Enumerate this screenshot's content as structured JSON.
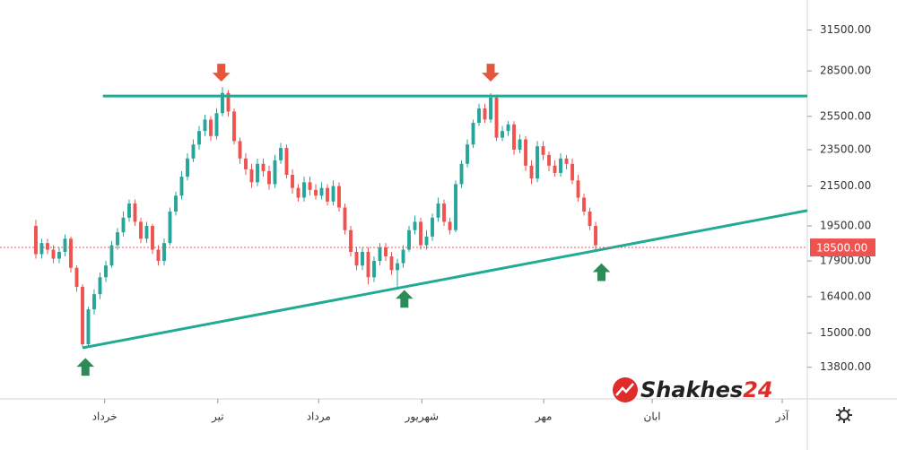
{
  "chart_data": {
    "type": "candlestick",
    "log_scale": true,
    "xlim": [
      -6.15,
      132.3
    ],
    "ylim": [
      12770,
      33900
    ],
    "xticks": [
      {
        "value": 11.8,
        "label": "خرداد"
      },
      {
        "value": 31.2,
        "label": "تیر"
      },
      {
        "value": 48.5,
        "label": "مرداد"
      },
      {
        "value": 66.2,
        "label": "شهریور"
      },
      {
        "value": 87.1,
        "label": "مهر"
      },
      {
        "value": 105.7,
        "label": "ابان"
      },
      {
        "value": 128,
        "label": "آذر"
      }
    ],
    "yticks": [
      {
        "value": 31500,
        "label": "31500.00"
      },
      {
        "value": 28500,
        "label": "28500.00"
      },
      {
        "value": 25500,
        "label": "25500.00"
      },
      {
        "value": 23500,
        "label": "23500.00"
      },
      {
        "value": 21500,
        "label": "21500.00"
      },
      {
        "value": 19500,
        "label": "19500.00"
      },
      {
        "value": 17900,
        "label": "17900.00"
      },
      {
        "value": 16400,
        "label": "16400.00"
      },
      {
        "value": 15000,
        "label": "15000.00"
      },
      {
        "value": 13800,
        "label": "13800.00"
      }
    ],
    "up_color": "#26a69a",
    "down_color": "#ef5350",
    "x": [
      0,
      1,
      2,
      3,
      4,
      5,
      6,
      7,
      8,
      9,
      10,
      11,
      12,
      13,
      14,
      15,
      16,
      17,
      18,
      19,
      20,
      21,
      22,
      23,
      24,
      25,
      26,
      27,
      28,
      29,
      30,
      31,
      32,
      33,
      34,
      35,
      36,
      37,
      38,
      39,
      40,
      41,
      42,
      43,
      44,
      45,
      46,
      47,
      48,
      49,
      50,
      51,
      52,
      53,
      54,
      55,
      56,
      57,
      58,
      59,
      60,
      61,
      62,
      63,
      64,
      65,
      66,
      67,
      68,
      69,
      70,
      71,
      72,
      73,
      74,
      75,
      76,
      77,
      78,
      79,
      80,
      81,
      82,
      83,
      84,
      85,
      86,
      87,
      88,
      89,
      90,
      91,
      92,
      93,
      94,
      95,
      96
    ],
    "open": [
      19500,
      18200,
      18700,
      18400,
      18000,
      18300,
      18900,
      17600,
      16800,
      14600,
      15900,
      16500,
      17200,
      17700,
      18600,
      19200,
      19900,
      20600,
      19700,
      18900,
      19500,
      18400,
      17900,
      18700,
      20200,
      21000,
      22000,
      23000,
      23800,
      24600,
      25300,
      24300,
      25700,
      27000,
      25800,
      24000,
      23000,
      22400,
      21700,
      22700,
      22300,
      21600,
      22900,
      23600,
      22100,
      21400,
      20900,
      21700,
      21300,
      21000,
      21400,
      20700,
      21500,
      20400,
      19300,
      18300,
      17700,
      18300,
      17200,
      17900,
      18500,
      18100,
      17500,
      17800,
      18400,
      19300,
      19700,
      18600,
      19000,
      19900,
      20600,
      19700,
      19300,
      21600,
      22700,
      23800,
      25100,
      26000,
      25300,
      26700,
      24200,
      24600,
      25000,
      23500,
      24100,
      22600,
      21900,
      23700,
      23200,
      22600,
      22200,
      23000,
      22700,
      21800,
      20900,
      20200,
      19500
    ],
    "high": [
      19800,
      18900,
      18900,
      18600,
      18500,
      19100,
      19000,
      17700,
      16900,
      16000,
      16700,
      17400,
      17900,
      18800,
      19400,
      20200,
      20800,
      20800,
      19900,
      19700,
      19600,
      18600,
      18900,
      20400,
      21200,
      22300,
      23300,
      24100,
      24900,
      25600,
      25500,
      26000,
      27400,
      27200,
      26000,
      24200,
      23300,
      22700,
      23000,
      23000,
      22600,
      23200,
      23900,
      23800,
      22400,
      21600,
      22000,
      22000,
      21600,
      21700,
      21600,
      21800,
      21700,
      20600,
      19500,
      18500,
      18500,
      18500,
      18100,
      18700,
      18700,
      18300,
      18000,
      18600,
      19500,
      20000,
      19900,
      19300,
      20100,
      20900,
      20800,
      19900,
      21800,
      22900,
      24100,
      25300,
      26300,
      26300,
      27000,
      26900,
      24900,
      25200,
      25200,
      24400,
      24300,
      22900,
      24000,
      24000,
      23400,
      22900,
      23300,
      23200,
      23000,
      22100,
      21100,
      20400,
      19700
    ],
    "low": [
      18000,
      18000,
      18200,
      17800,
      17800,
      18100,
      17400,
      16600,
      14500,
      14500,
      15700,
      16300,
      17000,
      17600,
      18400,
      19000,
      19700,
      19500,
      18700,
      18700,
      18200,
      17700,
      17700,
      18600,
      20000,
      20800,
      21800,
      22800,
      23500,
      24300,
      24000,
      24100,
      25500,
      25500,
      23800,
      22700,
      22100,
      21400,
      21500,
      22000,
      21300,
      21400,
      22700,
      21900,
      21100,
      20700,
      20700,
      21000,
      20800,
      20800,
      20500,
      20500,
      20200,
      19100,
      18100,
      17500,
      17500,
      16900,
      17000,
      17700,
      17900,
      17300,
      16700,
      17600,
      18300,
      19100,
      18400,
      18400,
      18800,
      19700,
      19500,
      19100,
      19200,
      21400,
      22500,
      23600,
      24900,
      25100,
      25100,
      24000,
      24000,
      24300,
      23200,
      23300,
      22300,
      21600,
      21700,
      22900,
      22300,
      22000,
      22000,
      22400,
      21600,
      20700,
      20000,
      19300,
      18400
    ],
    "close": [
      18200,
      18700,
      18400,
      18000,
      18300,
      18900,
      17600,
      16800,
      14600,
      15900,
      16500,
      17200,
      17700,
      18600,
      19200,
      19900,
      20600,
      19700,
      18900,
      19500,
      18400,
      17900,
      18700,
      20200,
      21000,
      22000,
      23000,
      23800,
      24600,
      25300,
      24300,
      25700,
      27000,
      25800,
      24000,
      23000,
      22400,
      21700,
      22700,
      22300,
      21600,
      22900,
      23600,
      22100,
      21400,
      20900,
      21700,
      21300,
      21000,
      21400,
      20700,
      21500,
      20400,
      19300,
      18300,
      17700,
      18300,
      17200,
      17900,
      18500,
      18100,
      17500,
      17800,
      18400,
      19300,
      19700,
      18600,
      19000,
      19900,
      20600,
      19700,
      19300,
      21600,
      22700,
      23800,
      25100,
      26000,
      25300,
      26700,
      24200,
      24600,
      25000,
      23500,
      24100,
      22600,
      21900,
      23700,
      23200,
      22600,
      22200,
      23000,
      22700,
      21800,
      20900,
      20200,
      19500,
      18600
    ],
    "current_price": {
      "value": 18500,
      "label": "18500.00",
      "color": "#ef5350"
    },
    "trend_lines": [
      {
        "x": [
          11.5,
          132.3
        ],
        "y": [
          26800,
          26800
        ],
        "color": "#22ab94"
      },
      {
        "x": [
          8,
          132.3
        ],
        "y": [
          14470,
          20250
        ],
        "color": "#22ab94"
      }
    ],
    "arrows": [
      {
        "x": 31.8,
        "y": 28400,
        "direction": "down",
        "color": "#e4573d"
      },
      {
        "x": 78,
        "y": 28400,
        "direction": "down",
        "color": "#e4573d"
      },
      {
        "x": 8.5,
        "y": 13800,
        "direction": "up",
        "color": "#2e8b57"
      },
      {
        "x": 63.2,
        "y": 16300,
        "direction": "up",
        "color": "#2e8b57"
      },
      {
        "x": 97,
        "y": 17400,
        "direction": "up",
        "color": "#2e8b57"
      }
    ],
    "logo": {
      "name": "Shakhes",
      "number": "24"
    }
  }
}
